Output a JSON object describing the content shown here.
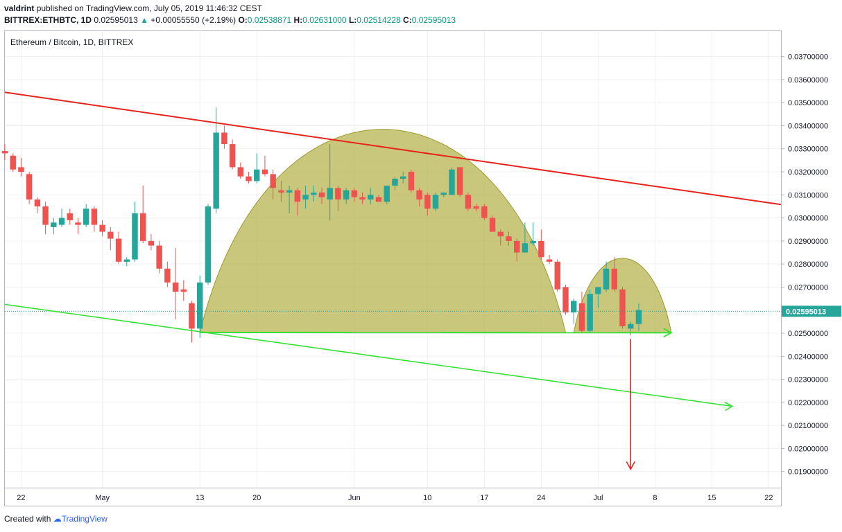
{
  "header": {
    "user": "valdrint",
    "published_text": "published on TradingView.com, July 05, 2019 11:46:32 CEST",
    "symbol": "BITTREX:ETHBTC, 1D",
    "last": "0.02595013",
    "change": "+0.00055550 (+2.19%)",
    "o_label": "O:",
    "o": "0.02538871",
    "h_label": "H:",
    "h": "0.02631000",
    "l_label": "L:",
    "l": "0.02514228",
    "c_label": "C:",
    "c": "0.02595013"
  },
  "legend": "Ethereum / Bitcoin, 1D, BITTREX",
  "footer": {
    "created": "Created with",
    "brand": "TradingView"
  },
  "colors": {
    "up": "#26a69a",
    "down": "#ef5350",
    "resistance": "#e8231c",
    "support": "#33e033",
    "pattern_fill": "#b5b450",
    "pattern_stroke": "#9a9a2a",
    "target": "#e8231c"
  },
  "chart_data": {
    "type": "candlestick",
    "title": "Ethereum / Bitcoin, 1D, BITTREX",
    "ylim": [
      0.0183,
      0.0381
    ],
    "y_ticks": [
      "0.03700000",
      "0.03600000",
      "0.03500000",
      "0.03400000",
      "0.03300000",
      "0.03200000",
      "0.03100000",
      "0.03000000",
      "0.02900000",
      "0.02800000",
      "0.02700000",
      "0.02600000",
      "0.02500000",
      "0.02400000",
      "0.02300000",
      "0.02200000",
      "0.02100000",
      "0.02000000",
      "0.01900000"
    ],
    "y_tick_values": [
      0.037,
      0.036,
      0.035,
      0.034,
      0.033,
      0.032,
      0.031,
      0.03,
      0.029,
      0.028,
      0.027,
      0.026,
      0.025,
      0.024,
      0.023,
      0.022,
      0.021,
      0.02,
      0.019
    ],
    "x_labels": [
      {
        "label": "22",
        "day": -7
      },
      {
        "label": "May",
        "day": 3
      },
      {
        "label": "13",
        "day": 15
      },
      {
        "label": "20",
        "day": 22
      },
      {
        "label": "Jun",
        "day": 34
      },
      {
        "label": "10",
        "day": 43
      },
      {
        "label": "17",
        "day": 50
      },
      {
        "label": "24",
        "day": 57
      },
      {
        "label": "Jul",
        "day": 64
      },
      {
        "label": "8",
        "day": 71
      },
      {
        "label": "15",
        "day": 78
      },
      {
        "label": "22",
        "day": 85
      }
    ],
    "x_range_days": [
      -9,
      86.5
    ],
    "last_price_label": "0.02595013",
    "last_price": 0.02595013,
    "candles": [
      {
        "d": -9,
        "o": 0.0329,
        "h": 0.0332,
        "l": 0.0325,
        "c": 0.0328
      },
      {
        "d": -8,
        "o": 0.0327,
        "h": 0.0328,
        "l": 0.032,
        "c": 0.0321
      },
      {
        "d": -7,
        "o": 0.0322,
        "h": 0.0326,
        "l": 0.0318,
        "c": 0.032
      },
      {
        "d": -6,
        "o": 0.0319,
        "h": 0.032,
        "l": 0.0306,
        "c": 0.0308
      },
      {
        "d": -5,
        "o": 0.0308,
        "h": 0.0309,
        "l": 0.0302,
        "c": 0.0305
      },
      {
        "d": -4,
        "o": 0.0305,
        "h": 0.0307,
        "l": 0.0293,
        "c": 0.0297
      },
      {
        "d": -3,
        "o": 0.0296,
        "h": 0.03,
        "l": 0.0293,
        "c": 0.0298
      },
      {
        "d": -2,
        "o": 0.0297,
        "h": 0.0304,
        "l": 0.0296,
        "c": 0.03
      },
      {
        "d": -1,
        "o": 0.0302,
        "h": 0.0304,
        "l": 0.0297,
        "c": 0.0299
      },
      {
        "d": 0,
        "o": 0.0298,
        "h": 0.03,
        "l": 0.0293,
        "c": 0.0297
      },
      {
        "d": 1,
        "o": 0.0297,
        "h": 0.0306,
        "l": 0.0296,
        "c": 0.0304
      },
      {
        "d": 2,
        "o": 0.0304,
        "h": 0.0305,
        "l": 0.0294,
        "c": 0.0297
      },
      {
        "d": 3,
        "o": 0.0297,
        "h": 0.0299,
        "l": 0.0292,
        "c": 0.0294
      },
      {
        "d": 4,
        "o": 0.0294,
        "h": 0.0296,
        "l": 0.0286,
        "c": 0.0291
      },
      {
        "d": 5,
        "o": 0.0291,
        "h": 0.0294,
        "l": 0.028,
        "c": 0.0281
      },
      {
        "d": 6,
        "o": 0.0281,
        "h": 0.0283,
        "l": 0.0279,
        "c": 0.0282
      },
      {
        "d": 7,
        "o": 0.0282,
        "h": 0.0307,
        "l": 0.0281,
        "c": 0.0302
      },
      {
        "d": 8,
        "o": 0.0302,
        "h": 0.0314,
        "l": 0.0289,
        "c": 0.029
      },
      {
        "d": 9,
        "o": 0.029,
        "h": 0.0293,
        "l": 0.0286,
        "c": 0.0288
      },
      {
        "d": 10,
        "o": 0.0288,
        "h": 0.029,
        "l": 0.0276,
        "c": 0.0278
      },
      {
        "d": 11,
        "o": 0.0278,
        "h": 0.0281,
        "l": 0.027,
        "c": 0.0272
      },
      {
        "d": 12,
        "o": 0.0272,
        "h": 0.0287,
        "l": 0.0256,
        "c": 0.0268
      },
      {
        "d": 13,
        "o": 0.0269,
        "h": 0.0273,
        "l": 0.0264,
        "c": 0.0268
      },
      {
        "d": 14,
        "o": 0.0263,
        "h": 0.0264,
        "l": 0.0246,
        "c": 0.0252
      },
      {
        "d": 15,
        "o": 0.0252,
        "h": 0.0275,
        "l": 0.0248,
        "c": 0.0272
      },
      {
        "d": 16,
        "o": 0.0272,
        "h": 0.0306,
        "l": 0.0271,
        "c": 0.0305
      },
      {
        "d": 17,
        "o": 0.0304,
        "h": 0.0348,
        "l": 0.0302,
        "c": 0.0337
      },
      {
        "d": 18,
        "o": 0.0337,
        "h": 0.034,
        "l": 0.033,
        "c": 0.0332
      },
      {
        "d": 19,
        "o": 0.0332,
        "h": 0.0334,
        "l": 0.0321,
        "c": 0.0322
      },
      {
        "d": 20,
        "o": 0.0322,
        "h": 0.0324,
        "l": 0.0317,
        "c": 0.0318
      },
      {
        "d": 21,
        "o": 0.0318,
        "h": 0.032,
        "l": 0.0315,
        "c": 0.0316
      },
      {
        "d": 22,
        "o": 0.0316,
        "h": 0.0328,
        "l": 0.0315,
        "c": 0.0321
      },
      {
        "d": 23,
        "o": 0.0321,
        "h": 0.0327,
        "l": 0.0318,
        "c": 0.0319
      },
      {
        "d": 24,
        "o": 0.0319,
        "h": 0.0321,
        "l": 0.0308,
        "c": 0.0313
      },
      {
        "d": 25,
        "o": 0.0312,
        "h": 0.0316,
        "l": 0.0307,
        "c": 0.0311
      },
      {
        "d": 26,
        "o": 0.0311,
        "h": 0.0314,
        "l": 0.0302,
        "c": 0.0312
      },
      {
        "d": 27,
        "o": 0.0312,
        "h": 0.0313,
        "l": 0.0301,
        "c": 0.0307
      },
      {
        "d": 28,
        "o": 0.0308,
        "h": 0.0314,
        "l": 0.0304,
        "c": 0.031
      },
      {
        "d": 29,
        "o": 0.031,
        "h": 0.0314,
        "l": 0.0307,
        "c": 0.0311
      },
      {
        "d": 30,
        "o": 0.0311,
        "h": 0.0313,
        "l": 0.0306,
        "c": 0.0309
      },
      {
        "d": 31,
        "o": 0.0308,
        "h": 0.0332,
        "l": 0.0299,
        "c": 0.0313
      },
      {
        "d": 32,
        "o": 0.0313,
        "h": 0.0314,
        "l": 0.0303,
        "c": 0.0308
      },
      {
        "d": 33,
        "o": 0.0308,
        "h": 0.0313,
        "l": 0.0306,
        "c": 0.0312
      },
      {
        "d": 34,
        "o": 0.0312,
        "h": 0.0313,
        "l": 0.0307,
        "c": 0.0309
      },
      {
        "d": 35,
        "o": 0.0309,
        "h": 0.0311,
        "l": 0.0306,
        "c": 0.0308
      },
      {
        "d": 36,
        "o": 0.0308,
        "h": 0.0313,
        "l": 0.0306,
        "c": 0.031
      },
      {
        "d": 37,
        "o": 0.0309,
        "h": 0.031,
        "l": 0.0307,
        "c": 0.0307
      },
      {
        "d": 38,
        "o": 0.0307,
        "h": 0.0314,
        "l": 0.0306,
        "c": 0.0314
      },
      {
        "d": 39,
        "o": 0.0314,
        "h": 0.0318,
        "l": 0.0312,
        "c": 0.0317
      },
      {
        "d": 40,
        "o": 0.0317,
        "h": 0.032,
        "l": 0.0315,
        "c": 0.0318
      },
      {
        "d": 41,
        "o": 0.032,
        "h": 0.0321,
        "l": 0.0311,
        "c": 0.0312
      },
      {
        "d": 42,
        "o": 0.0312,
        "h": 0.0313,
        "l": 0.0305,
        "c": 0.0308
      },
      {
        "d": 43,
        "o": 0.031,
        "h": 0.0311,
        "l": 0.0301,
        "c": 0.0304
      },
      {
        "d": 44,
        "o": 0.0304,
        "h": 0.0311,
        "l": 0.0303,
        "c": 0.031
      },
      {
        "d": 45,
        "o": 0.031,
        "h": 0.0311,
        "l": 0.0309,
        "c": 0.0311
      },
      {
        "d": 46,
        "o": 0.031,
        "h": 0.0322,
        "l": 0.031,
        "c": 0.0321
      },
      {
        "d": 47,
        "o": 0.0322,
        "h": 0.0322,
        "l": 0.0309,
        "c": 0.031
      },
      {
        "d": 48,
        "o": 0.031,
        "h": 0.0311,
        "l": 0.0303,
        "c": 0.0304
      },
      {
        "d": 49,
        "o": 0.0305,
        "h": 0.0306,
        "l": 0.0303,
        "c": 0.0304
      },
      {
        "d": 50,
        "o": 0.0305,
        "h": 0.0306,
        "l": 0.0299,
        "c": 0.03
      },
      {
        "d": 51,
        "o": 0.03,
        "h": 0.0301,
        "l": 0.0294,
        "c": 0.0294
      },
      {
        "d": 52,
        "o": 0.0294,
        "h": 0.0295,
        "l": 0.0288,
        "c": 0.0292
      },
      {
        "d": 53,
        "o": 0.0292,
        "h": 0.0294,
        "l": 0.0288,
        "c": 0.029
      },
      {
        "d": 54,
        "o": 0.029,
        "h": 0.0291,
        "l": 0.0281,
        "c": 0.0285
      },
      {
        "d": 55,
        "o": 0.0285,
        "h": 0.0298,
        "l": 0.0285,
        "c": 0.0289
      },
      {
        "d": 56,
        "o": 0.0289,
        "h": 0.0298,
        "l": 0.0288,
        "c": 0.029
      },
      {
        "d": 57,
        "o": 0.029,
        "h": 0.0295,
        "l": 0.0282,
        "c": 0.0283
      },
      {
        "d": 58,
        "o": 0.0282,
        "h": 0.0284,
        "l": 0.028,
        "c": 0.0281
      },
      {
        "d": 59,
        "o": 0.0281,
        "h": 0.0282,
        "l": 0.0268,
        "c": 0.0269
      },
      {
        "d": 60,
        "o": 0.027,
        "h": 0.0271,
        "l": 0.0258,
        "c": 0.0259
      },
      {
        "d": 61,
        "o": 0.0259,
        "h": 0.0265,
        "l": 0.0254,
        "c": 0.0264
      },
      {
        "d": 62,
        "o": 0.0263,
        "h": 0.0268,
        "l": 0.025,
        "c": 0.0251
      },
      {
        "d": 63,
        "o": 0.0251,
        "h": 0.0269,
        "l": 0.025,
        "c": 0.0267
      },
      {
        "d": 64,
        "o": 0.0267,
        "h": 0.027,
        "l": 0.0261,
        "c": 0.027
      },
      {
        "d": 65,
        "o": 0.0269,
        "h": 0.0281,
        "l": 0.0268,
        "c": 0.0278
      },
      {
        "d": 66,
        "o": 0.0278,
        "h": 0.0283,
        "l": 0.0268,
        "c": 0.0269
      },
      {
        "d": 67,
        "o": 0.0269,
        "h": 0.027,
        "l": 0.0252,
        "c": 0.0253
      },
      {
        "d": 68,
        "o": 0.0252,
        "h": 0.0255,
        "l": 0.0249,
        "c": 0.0254
      },
      {
        "d": 69,
        "o": 0.0254,
        "h": 0.0263,
        "l": 0.0251,
        "c": 0.026
      }
    ],
    "annotations": {
      "resistance_line": [
        {
          "d": -9,
          "p": 0.03545
        },
        {
          "d": 86.5,
          "p": 0.03058
        }
      ],
      "support_line": [
        {
          "d": -9,
          "p": 0.02625
        },
        {
          "d": 80.5,
          "p": 0.02183
        }
      ],
      "neckline": [
        {
          "d": 15,
          "p": 0.02503
        },
        {
          "d": 73,
          "p": 0.02502
        }
      ],
      "cup": {
        "d_start": 15,
        "d_end": 60,
        "top": 0.03333
      },
      "handle": {
        "d_start": 61,
        "d_end": 73,
        "top": 0.02812
      },
      "target_arrow": [
        {
          "d": 68,
          "p": 0.02475
        },
        {
          "d": 68,
          "p": 0.0191
        }
      ]
    }
  }
}
